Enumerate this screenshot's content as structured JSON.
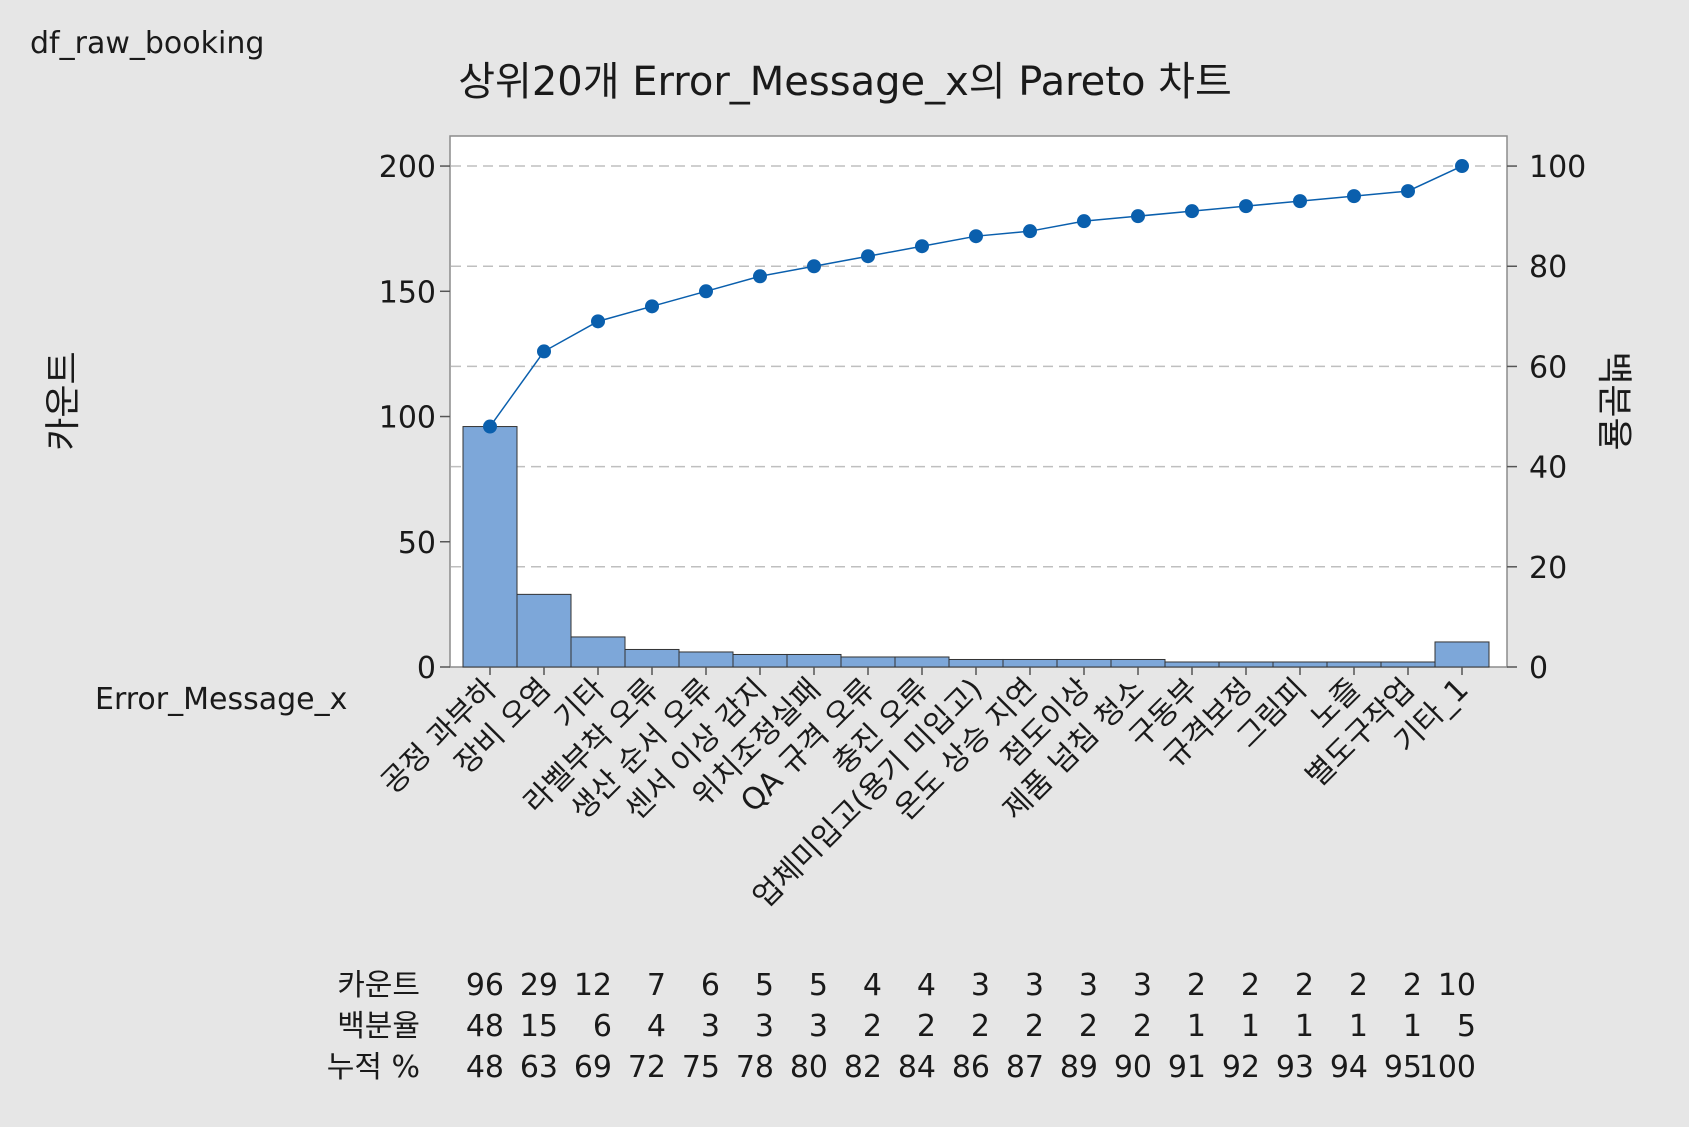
{
  "chart_data": {
    "type": "bar",
    "subtype": "pareto",
    "worksheet": "df_raw_booking",
    "title": "상위20개 Error_Message_x의 Pareto 차트",
    "xlabel": "Error_Message_x",
    "ylabel": "카운트",
    "y2label": "백분율",
    "ylim": [
      0,
      212
    ],
    "y2lim": [
      0,
      106
    ],
    "yticks": [
      0,
      50,
      100,
      150,
      200
    ],
    "y2ticks": [
      0,
      20,
      40,
      60,
      80,
      100
    ],
    "grid": true,
    "colors": {
      "bar": "#7da7d9",
      "bar_edge": "#333333",
      "line": "#0a5fad",
      "grid": "#bfbfbf",
      "plot_bg": "#ffffff",
      "page_bg": "#e6e6e6"
    },
    "categories": [
      "공정 과부하",
      "장비 오염",
      "기타",
      "라벨부착 오류",
      "생산 순서 오류",
      "센서 이상 감지",
      "위치조정실패",
      "QA 규격 오류",
      "충진 오류",
      "업체미입고(용기 미입고)",
      "온도 상승 지연",
      "점도이상",
      "제품 넘침 청소",
      "구동부",
      "규격보정",
      "그림피",
      "노즐",
      "별도구작업",
      "기타_1"
    ],
    "series": [
      {
        "name": "카운트",
        "values": [
          96,
          29,
          12,
          7,
          6,
          5,
          5,
          4,
          4,
          3,
          3,
          3,
          3,
          2,
          2,
          2,
          2,
          2,
          10
        ]
      },
      {
        "name": "백분율",
        "values": [
          48,
          15,
          6,
          4,
          3,
          3,
          3,
          2,
          2,
          2,
          2,
          2,
          2,
          1,
          1,
          1,
          1,
          1,
          5
        ]
      },
      {
        "name": "누적 %",
        "values": [
          48,
          63,
          69,
          72,
          75,
          78,
          80,
          82,
          84,
          86,
          87,
          89,
          90,
          91,
          92,
          93,
          94,
          95,
          100
        ]
      }
    ],
    "table_row_labels": [
      "카운트",
      "백분율",
      "누적 %"
    ]
  }
}
